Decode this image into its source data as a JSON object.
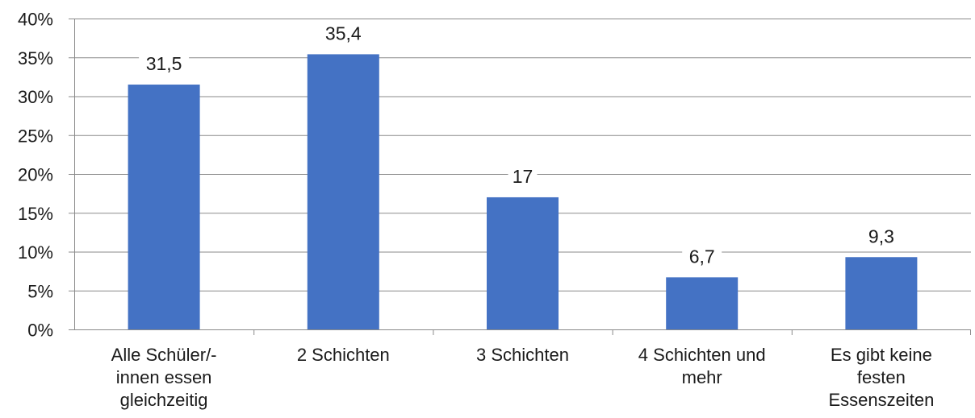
{
  "chart_data": {
    "type": "bar",
    "categories": [
      [
        "Alle Schüler/-",
        "innen essen",
        "gleichzeitig"
      ],
      [
        "2 Schichten"
      ],
      [
        "3 Schichten"
      ],
      [
        "4 Schichten und",
        "mehr"
      ],
      [
        "Es gibt keine",
        "festen",
        "Essenszeiten"
      ]
    ],
    "values": [
      31.5,
      35.4,
      17,
      6.7,
      9.3
    ],
    "data_labels": [
      "31,5",
      "35,4",
      "17",
      "6,7",
      "9,3"
    ],
    "ylim": [
      0,
      40
    ],
    "yticks": [
      0,
      5,
      10,
      15,
      20,
      25,
      30,
      35,
      40
    ],
    "ytick_labels": [
      "0%",
      "5%",
      "10%",
      "15%",
      "20%",
      "25%",
      "30%",
      "35%",
      "40%"
    ],
    "grid": true,
    "bar_color": "#4472c4",
    "title": "",
    "xlabel": "",
    "ylabel": ""
  }
}
